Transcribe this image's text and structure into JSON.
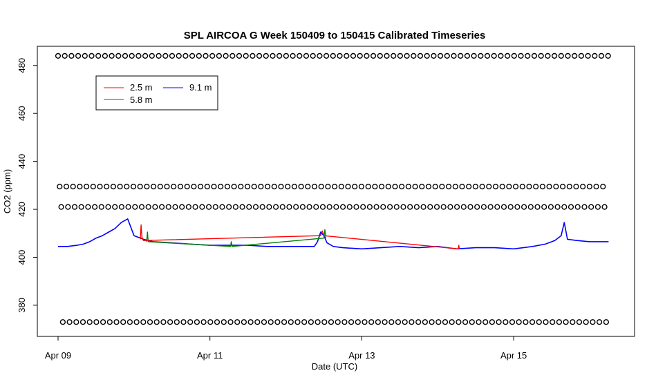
{
  "chart_data": {
    "type": "line",
    "title": "SPL AIRCOA G  Week 150409 to 150415  Calibrated Timeseries",
    "xlabel": "Date (UTC)",
    "ylabel": "CO2 (ppm)",
    "xlim": [
      "2015-04-09T00:00",
      "2015-04-16T07:00"
    ],
    "ylim": [
      367,
      488
    ],
    "x_ticks": [
      {
        "label": "Apr 09",
        "value": "2015-04-09T00:00"
      },
      {
        "label": "Apr 11",
        "value": "2015-04-11T00:00"
      },
      {
        "label": "Apr 13",
        "value": "2015-04-13T00:00"
      },
      {
        "label": "Apr 15",
        "value": "2015-04-15T00:00"
      }
    ],
    "y_ticks": [
      {
        "label": "380",
        "value": 380
      },
      {
        "label": "400",
        "value": 400
      },
      {
        "label": "420",
        "value": 420
      },
      {
        "label": "440",
        "value": 440
      },
      {
        "label": "460",
        "value": 460
      },
      {
        "label": "480",
        "value": 480
      }
    ],
    "grid": false,
    "legend_position": "top-left",
    "series": [
      {
        "name": "2.5 m",
        "color": "#ff0000",
        "x": [
          "2015-04-10T02:00",
          "2015-04-10T02:15",
          "2015-04-10T02:30",
          "2015-04-10T02:45",
          "2015-04-10T03:00",
          "2015-04-12T11:00",
          "2015-04-12T11:30",
          "2015-04-12T12:00",
          "2015-04-14T06:30",
          "2015-04-14T06:40",
          "2015-04-14T06:50"
        ],
        "y": [
          407.5,
          413.5,
          408.5,
          407.5,
          407.0,
          409.0,
          411.0,
          409.0,
          403.5,
          405.0,
          403.5
        ]
      },
      {
        "name": "5.8 m",
        "color": "#008000",
        "x": [
          "2015-04-10T04:00",
          "2015-04-10T04:15",
          "2015-04-10T04:30",
          "2015-04-11T06:30",
          "2015-04-11T06:45",
          "2015-04-11T07:00",
          "2015-04-12T12:00",
          "2015-04-12T12:20",
          "2015-04-12T12:40"
        ],
        "y": [
          406.5,
          410.5,
          406.5,
          404.5,
          406.5,
          404.5,
          408.0,
          411.5,
          408.0
        ]
      },
      {
        "name": "9.1 m",
        "color": "#0000ff",
        "x": [
          "2015-04-09T00:00",
          "2015-04-09T03:00",
          "2015-04-09T06:00",
          "2015-04-09T08:00",
          "2015-04-09T10:00",
          "2015-04-09T12:00",
          "2015-04-09T14:00",
          "2015-04-09T16:00",
          "2015-04-09T18:00",
          "2015-04-09T20:00",
          "2015-04-09T22:00",
          "2015-04-10T00:00",
          "2015-04-10T03:00",
          "2015-04-10T06:00",
          "2015-04-10T12:00",
          "2015-04-10T18:00",
          "2015-04-11T00:00",
          "2015-04-11T06:00",
          "2015-04-11T12:00",
          "2015-04-11T18:00",
          "2015-04-12T00:00",
          "2015-04-12T06:00",
          "2015-04-12T09:00",
          "2015-04-12T10:00",
          "2015-04-12T11:00",
          "2015-04-12T12:00",
          "2015-04-12T13:00",
          "2015-04-12T15:00",
          "2015-04-12T18:00",
          "2015-04-13T00:00",
          "2015-04-13T06:00",
          "2015-04-13T12:00",
          "2015-04-13T18:00",
          "2015-04-14T00:00",
          "2015-04-14T06:00",
          "2015-04-14T12:00",
          "2015-04-14T18:00",
          "2015-04-15T00:00",
          "2015-04-15T06:00",
          "2015-04-15T10:00",
          "2015-04-15T13:00",
          "2015-04-15T15:00",
          "2015-04-15T16:00",
          "2015-04-15T17:00",
          "2015-04-15T20:00",
          "2015-04-16T00:00",
          "2015-04-16T06:00"
        ],
        "y": [
          404.5,
          404.5,
          405.0,
          405.5,
          406.5,
          408.0,
          409.0,
          410.5,
          412.0,
          414.5,
          416.0,
          409.0,
          407.5,
          406.5,
          406.0,
          405.5,
          405.0,
          405.0,
          405.0,
          404.5,
          404.5,
          404.5,
          404.5,
          406.5,
          410.5,
          409.0,
          406.0,
          404.5,
          404.0,
          403.5,
          404.0,
          404.5,
          404.0,
          404.5,
          403.5,
          404.0,
          404.0,
          403.5,
          404.5,
          405.5,
          407.0,
          409.0,
          414.5,
          407.5,
          407.0,
          406.5,
          406.5
        ]
      }
    ],
    "marker_series": [
      {
        "shape": "open-circle",
        "y": 484
      },
      {
        "shape": "open-circle",
        "y": 429.5
      },
      {
        "shape": "open-circle",
        "y": 421
      },
      {
        "shape": "open-circle",
        "y": 373
      }
    ]
  }
}
